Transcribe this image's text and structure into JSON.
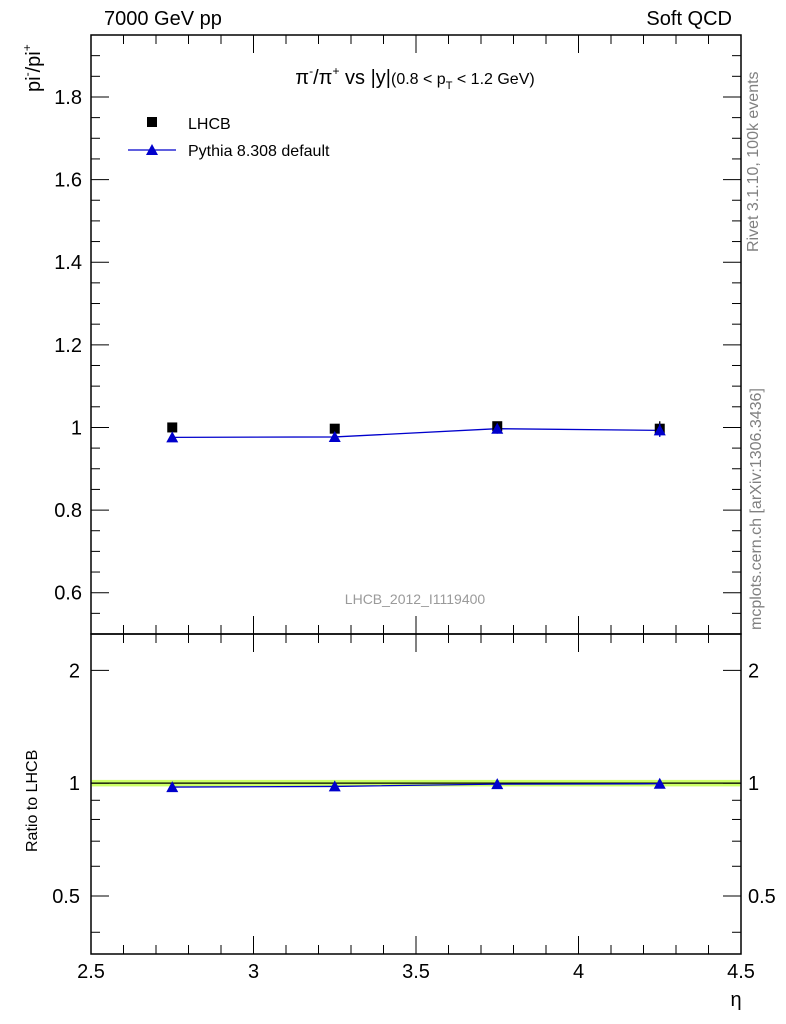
{
  "header": {
    "left": "7000 GeV pp",
    "right": "Soft QCD"
  },
  "side_text": {
    "rivet": "Rivet 3.1.10,  100k events",
    "mcplots": "mcplots.cern.ch [arXiv:1306.3436]"
  },
  "chart_data": [
    {
      "panel": "main",
      "type": "scatter",
      "title_parts": {
        "pi": "π",
        "minus": "-",
        "slash": "/",
        "plus": "+",
        "vs": " vs ",
        "absy": "|y|",
        "range_pre": "(0.8 < p",
        "range_sub": "T",
        "range_post": " < 1.2 GeV)"
      },
      "ylabel_parts": {
        "base": "pi",
        "sup1": "-",
        "mid": "/pi",
        "sup2": "+"
      },
      "xlim": [
        2.5,
        4.5
      ],
      "ylim": [
        0.5,
        1.95
      ],
      "yticks": [
        0.6,
        0.8,
        1.0,
        1.2,
        1.4,
        1.6,
        1.8
      ],
      "ytick_labels": [
        "0.6",
        "0.8",
        "1",
        "1.2",
        "1.4",
        "1.6",
        "1.8"
      ],
      "watermark": "LHCB_2012_I1119400",
      "legend_position": "top-left",
      "series": [
        {
          "name": "LHCB",
          "marker": "square",
          "color": "#000000",
          "x": [
            2.75,
            3.25,
            3.75,
            4.25
          ],
          "y": [
            1.0,
            0.997,
            1.003,
            0.997
          ],
          "yerr": [
            0.004,
            0.004,
            0.006,
            0.018
          ]
        },
        {
          "name": "Pythia 8.308 default",
          "marker": "triangle",
          "color": "#0000cc",
          "x": [
            2.75,
            3.25,
            3.75,
            4.25
          ],
          "y": [
            0.976,
            0.977,
            0.997,
            0.993
          ],
          "yerr": [
            0.006,
            0.006,
            0.012,
            0.016
          ]
        }
      ]
    },
    {
      "panel": "ratio",
      "type": "line",
      "ylabel": "Ratio to LHCB",
      "xlabel": "η",
      "xlim": [
        2.5,
        4.5
      ],
      "ylim": [
        0.35,
        2.5
      ],
      "yticks": [
        0.5,
        1,
        2
      ],
      "ytick_labels": [
        "0.5",
        "1",
        "2"
      ],
      "xticks": [
        2.5,
        3,
        3.5,
        4,
        4.5
      ],
      "xtick_labels": [
        "2.5",
        "3",
        "3.5",
        "4",
        "4.5"
      ],
      "band_color": "#ccff66",
      "band_halfwidth": 0.02,
      "series": [
        {
          "name": "Pythia 8.308 default",
          "color": "#0000cc",
          "x": [
            2.75,
            3.25,
            3.75,
            4.25
          ],
          "y": [
            0.976,
            0.98,
            0.994,
            0.996
          ]
        }
      ]
    }
  ]
}
